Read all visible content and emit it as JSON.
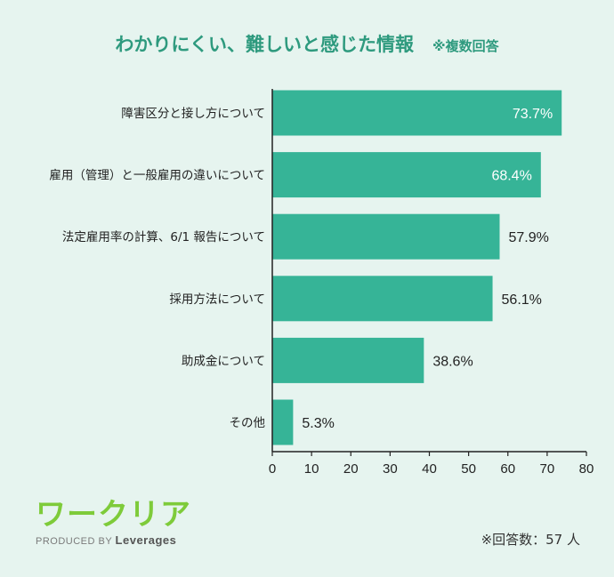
{
  "chart_data": {
    "type": "bar",
    "orientation": "horizontal",
    "title": "わかりにくい、難しいと感じた情報",
    "title_note": "※複数回答",
    "categories": [
      "障害区分と接し方について",
      "雇用（管理）と一般雇用の違いについて",
      "法定雇用率の計算、6/1 報告について",
      "採用方法について",
      "助成金について",
      "その他"
    ],
    "values": [
      73.7,
      68.4,
      57.9,
      56.1,
      38.6,
      5.3
    ],
    "value_labels": [
      "73.7%",
      "68.4%",
      "57.9%",
      "56.1%",
      "38.6%",
      "5.3%"
    ],
    "xlim": [
      0,
      80
    ],
    "xticks": [
      0,
      10,
      20,
      30,
      40,
      50,
      60,
      70,
      80
    ],
    "xlabel": "",
    "ylabel": "",
    "bar_color": "#36b497"
  },
  "logo": {
    "name": "ワークリア",
    "produced_by": "PRODUCED BY",
    "brand": "Leverages"
  },
  "respondents": "※回答数：57 人"
}
